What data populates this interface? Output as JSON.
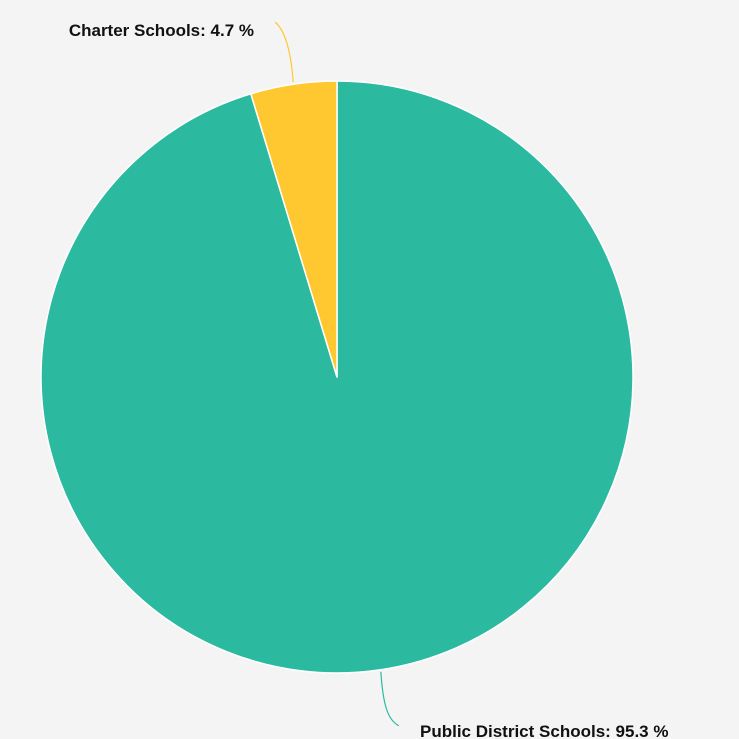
{
  "chart_data": {
    "type": "pie",
    "slices": [
      {
        "label": "Public District Schools",
        "value": 95.3,
        "unit": "%",
        "color": "#2bb9a0"
      },
      {
        "label": "Charter Schools",
        "value": 4.7,
        "unit": "%",
        "color": "#ffc730"
      }
    ],
    "start_angle_deg": 0,
    "direction": "clockwise",
    "legend": "none",
    "background": "#f4f4f4"
  }
}
